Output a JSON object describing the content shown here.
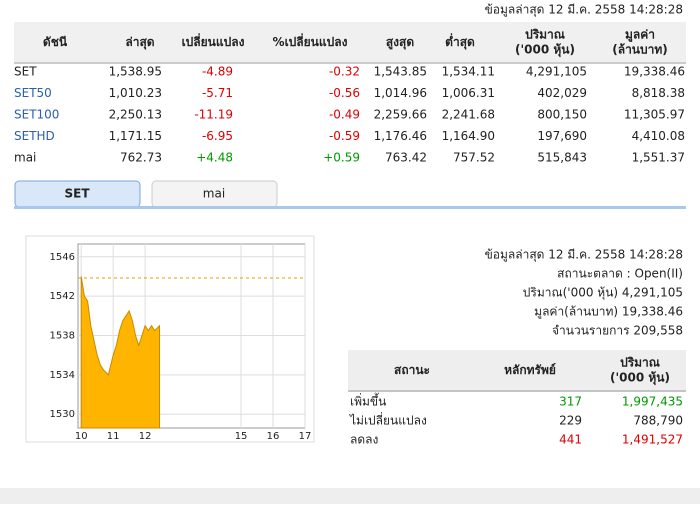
{
  "header": {
    "updated": "ข้อมูลล่าสุด 12 มี.ค. 2558 14:28:28"
  },
  "index_table": {
    "columns": [
      "ดัชนี",
      "ล่าสุด",
      "เปลี่ยนแปลง",
      "%เปลี่ยนแปลง",
      "สูงสุด",
      "ต่ำสุด",
      "ปริมาณ\n('000 หุ้น)",
      "มูลค่า\n(ล้านบาท)"
    ],
    "rows": [
      [
        "SET",
        "1,538.95",
        "-4.89",
        "-0.32",
        "1,543.85",
        "1,534.11",
        "4,291,105",
        "19,338.46"
      ],
      [
        "SET50",
        "1,010.23",
        "-5.71",
        "-0.56",
        "1,014.96",
        "1,006.31",
        "402,029",
        "8,818.38"
      ],
      [
        "SET100",
        "2,250.13",
        "-11.19",
        "-0.49",
        "2,259.66",
        "2,241.68",
        "800,150",
        "11,305.97"
      ],
      [
        "SETHD",
        "1,171.15",
        "-6.95",
        "-0.59",
        "1,176.46",
        "1,164.90",
        "197,690",
        "4,410.08"
      ],
      [
        "mai",
        "762.73",
        "+4.48",
        "+0.59",
        "763.42",
        "757.52",
        "515,843",
        "1,551.37"
      ]
    ]
  },
  "tabs": [
    "SET",
    "mai"
  ],
  "chart_data": {
    "type": "area",
    "color": "#ffb400",
    "x": [
      10.0,
      10.1,
      10.2,
      10.3,
      10.4,
      10.5,
      10.6,
      10.7,
      10.85,
      11.0,
      11.1,
      11.2,
      11.3,
      11.4,
      11.5,
      11.6,
      11.7,
      11.8,
      11.9,
      12.0,
      12.1,
      12.2,
      12.3,
      12.45
    ],
    "values": [
      1544,
      1542,
      1541.5,
      1539,
      1537.5,
      1536,
      1535,
      1534.5,
      1534,
      1536,
      1537,
      1538.5,
      1539.5,
      1540,
      1540.5,
      1539.5,
      1538,
      1537,
      1538,
      1539,
      1538.5,
      1539,
      1538.5,
      1539
    ],
    "reference": 1543.84,
    "xlim": [
      9.9,
      17
    ],
    "xticks": [
      10,
      11,
      12,
      15,
      16,
      17
    ],
    "ylim": [
      1528.6,
      1547.3
    ],
    "yticks": [
      1530,
      1534,
      1538,
      1542,
      1546
    ],
    "grid": true
  },
  "info": [
    "ข้อมูลล่าสุด 12 มี.ค. 2558 14:28:28",
    "สถานะตลาด : Open(II)",
    "ปริมาณ('000 หุ้น) 4,291,105",
    "มูลค่า(ล้านบาท) 19,338.46",
    "จำนวนรายการ 209,558"
  ],
  "breadth_table": {
    "columns": [
      "สถานะ",
      "หลักทรัพย์",
      "ปริมาณ\n('000 หุ้น)"
    ],
    "rows": [
      [
        "เพิ่มขึ้น",
        "317",
        "1,997,435"
      ],
      [
        "ไม่เปลี่ยนแปลง",
        "229",
        "788,790"
      ],
      [
        "ลดลง",
        "441",
        "1,491,527"
      ]
    ]
  }
}
